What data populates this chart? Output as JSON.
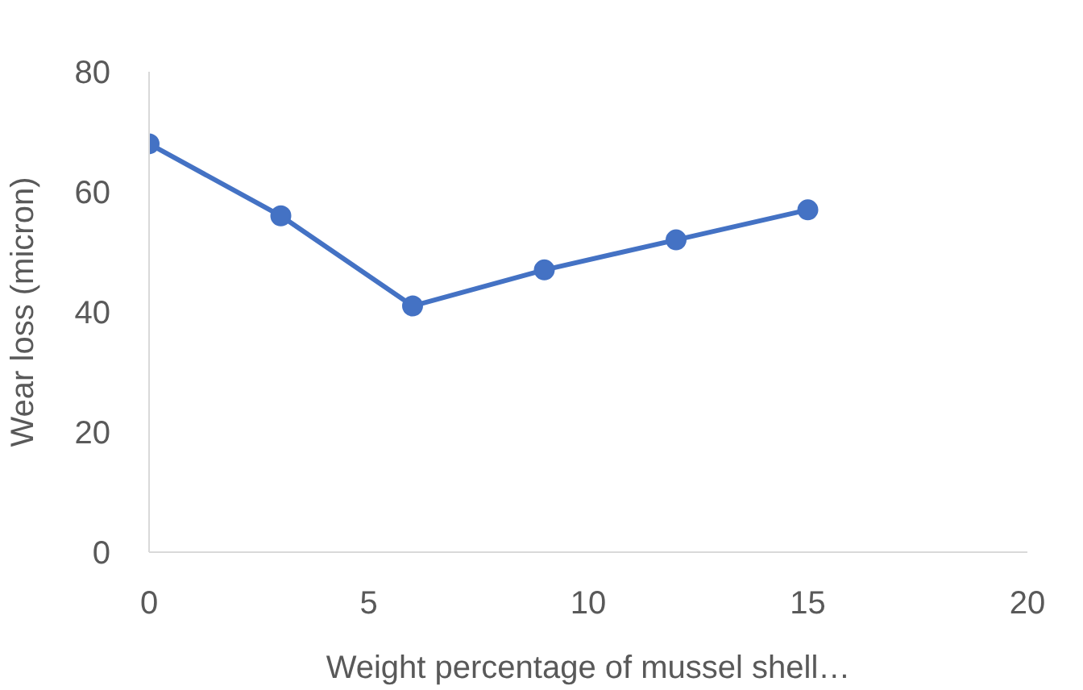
{
  "chart_data": {
    "type": "line",
    "xlabel": "Weight percentage of mussel shell…",
    "ylabel": "Wear loss (micron)",
    "x": [
      0,
      3,
      6,
      9,
      12,
      15
    ],
    "series": [
      {
        "color": "#4472c4",
        "values": [
          68,
          56,
          41,
          47,
          52,
          57
        ]
      }
    ],
    "xlim": [
      0,
      20
    ],
    "xticks": [
      0,
      5,
      10,
      15,
      20
    ],
    "ylim": [
      0,
      80
    ],
    "yticks": [
      0,
      20,
      40,
      60,
      80
    ],
    "grid": false,
    "marker": "circle",
    "line_style": "solid"
  }
}
